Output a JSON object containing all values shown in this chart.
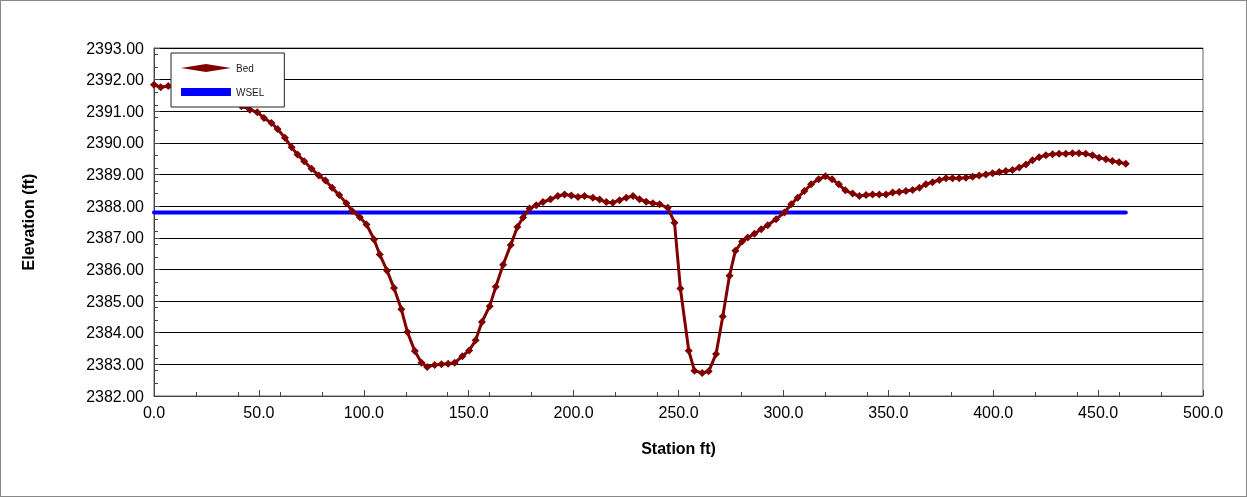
{
  "chart_data": {
    "type": "line",
    "xlabel": "Station ft)",
    "ylabel": "Elevation (ft)",
    "xlim": [
      0,
      500
    ],
    "xticks": [
      {
        "value": 0,
        "label": "0.0"
      },
      {
        "value": 50,
        "label": "50.0"
      },
      {
        "value": 100,
        "label": "100.0"
      },
      {
        "value": 150,
        "label": "150.0"
      },
      {
        "value": 200,
        "label": "200.0"
      },
      {
        "value": 250,
        "label": "250.0"
      },
      {
        "value": 300,
        "label": "300.0"
      },
      {
        "value": 350,
        "label": "350.0"
      },
      {
        "value": 400,
        "label": "400.0"
      },
      {
        "value": 450,
        "label": "450.0"
      },
      {
        "value": 500,
        "label": "500.0"
      }
    ],
    "ylim": [
      2382,
      2393
    ],
    "yticks": [
      {
        "value": 2382,
        "label": "2382.00"
      },
      {
        "value": 2383,
        "label": "2383.00"
      },
      {
        "value": 2384,
        "label": "2384.00"
      },
      {
        "value": 2385,
        "label": "2385.00"
      },
      {
        "value": 2386,
        "label": "2386.00"
      },
      {
        "value": 2387,
        "label": "2387.00"
      },
      {
        "value": 2388,
        "label": "2388.00"
      },
      {
        "value": 2389,
        "label": "2389.00"
      },
      {
        "value": 2390,
        "label": "2390.00"
      },
      {
        "value": 2391,
        "label": "2391.00"
      },
      {
        "value": 2392,
        "label": "2392.00"
      },
      {
        "value": 2393,
        "label": "2393.00"
      }
    ],
    "grid": "y",
    "legend": "top left",
    "marker": "diamond",
    "line_style": "solid",
    "series": [
      {
        "name": "Bed",
        "color": "#800000",
        "x": [
          0,
          3.2,
          6.8,
          41.7,
          45.7,
          49.2,
          52.4,
          56.0,
          58.9,
          62.4,
          65.6,
          68.4,
          71.6,
          75.1,
          78.6,
          81.7,
          84.9,
          88.3,
          91.7,
          94.4,
          98.1,
          101.3,
          104.9,
          107.6,
          111.1,
          114.4,
          117.9,
          120.8,
          124.3,
          127.5,
          130.2,
          133.8,
          137.0,
          140.2,
          143.3,
          147.0,
          150.2,
          153.3,
          156.3,
          160.0,
          162.9,
          166.4,
          170.0,
          173.2,
          175.9,
          179.0,
          182.2,
          185.4,
          189.0,
          192.5,
          195.7,
          198.9,
          202.1,
          205.2,
          209.2,
          212.4,
          215.6,
          218.7,
          221.9,
          225.1,
          228.3,
          231.4,
          234.6,
          237.8,
          241.0,
          244.9,
          248.1,
          250.9,
          254.9,
          257.6,
          261.3,
          264.4,
          267.9,
          271.1,
          274.3,
          277.1,
          280.3,
          283.0,
          286.2,
          289.4,
          292.5,
          296.5,
          300.5,
          303.7,
          306.8,
          310.0,
          313.2,
          316.8,
          320.0,
          323.2,
          326.4,
          329.5,
          333.0,
          336.2,
          339.4,
          342.5,
          345.7,
          348.9,
          352.1,
          355.2,
          358.4,
          361.6,
          364.8,
          367.9,
          371.1,
          374.3,
          377.5,
          380.6,
          383.8,
          387.0,
          390.2,
          393.3,
          396.5,
          399.7,
          402.9,
          406.0,
          409.2,
          412.4,
          415.6,
          418.7,
          421.9,
          425.1,
          428.3,
          431.4,
          434.6,
          437.8,
          440.9,
          444.1,
          447.3,
          450.5,
          453.7,
          456.8,
          460.0,
          463.2
        ],
        "values": [
          2391.84,
          2391.76,
          2391.8,
          2391.16,
          2391.05,
          2390.97,
          2390.79,
          2390.63,
          2390.44,
          2390.16,
          2389.86,
          2389.63,
          2389.42,
          2389.18,
          2388.97,
          2388.81,
          2388.58,
          2388.35,
          2388.09,
          2387.85,
          2387.65,
          2387.42,
          2386.95,
          2386.47,
          2385.96,
          2385.41,
          2384.74,
          2384.02,
          2383.42,
          2383.05,
          2382.92,
          2382.98,
          2383.0,
          2383.02,
          2383.05,
          2383.26,
          2383.44,
          2383.76,
          2384.34,
          2384.84,
          2385.45,
          2386.15,
          2386.77,
          2387.34,
          2387.64,
          2387.93,
          2388.03,
          2388.13,
          2388.22,
          2388.32,
          2388.37,
          2388.34,
          2388.29,
          2388.32,
          2388.27,
          2388.21,
          2388.13,
          2388.11,
          2388.19,
          2388.27,
          2388.32,
          2388.22,
          2388.14,
          2388.09,
          2388.06,
          2387.95,
          2387.48,
          2385.4,
          2383.43,
          2382.8,
          2382.73,
          2382.78,
          2383.33,
          2384.51,
          2385.8,
          2386.59,
          2386.88,
          2387.01,
          2387.13,
          2387.27,
          2387.4,
          2387.59,
          2387.8,
          2388.06,
          2388.27,
          2388.48,
          2388.69,
          2388.85,
          2388.95,
          2388.85,
          2388.69,
          2388.5,
          2388.4,
          2388.32,
          2388.35,
          2388.37,
          2388.37,
          2388.37,
          2388.43,
          2388.45,
          2388.48,
          2388.51,
          2388.58,
          2388.69,
          2388.76,
          2388.83,
          2388.88,
          2388.88,
          2388.88,
          2388.9,
          2388.93,
          2388.97,
          2389.0,
          2389.04,
          2389.08,
          2389.11,
          2389.14,
          2389.22,
          2389.32,
          2389.45,
          2389.55,
          2389.61,
          2389.64,
          2389.66,
          2389.66,
          2389.67,
          2389.67,
          2389.66,
          2389.61,
          2389.53,
          2389.48,
          2389.43,
          2389.39,
          2389.34
        ]
      },
      {
        "name": "WSEL",
        "color": "#0000ff",
        "marker": "none",
        "x": [
          0,
          463.2
        ],
        "values": [
          2387.8,
          2387.8
        ]
      }
    ]
  }
}
